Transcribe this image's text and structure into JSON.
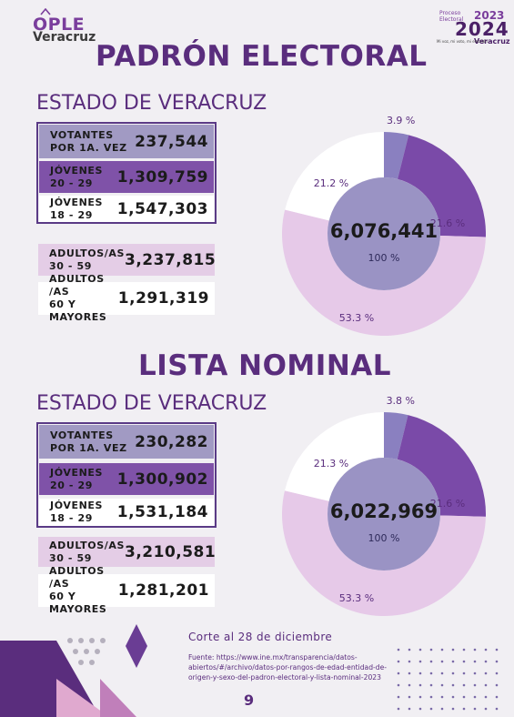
{
  "header": {
    "ople_name": "OPLE",
    "ople_sub": "Veracruz",
    "pe_small": "Proceso Electoral",
    "pe_2023": "2023",
    "pe_2024": "2024",
    "pe_veracruz": "Veracruz",
    "pe_tiny": "Mi voz, mi voto, mi elección"
  },
  "padron": {
    "title": "PADRÓN ELECTORAL",
    "subtitle": "ESTADO DE VERACRUZ",
    "rows": [
      {
        "label1": "VOTANTES",
        "label2": "POR 1A. VEZ",
        "value": "237,544"
      },
      {
        "label1": "JÓVENES",
        "label2": "20 - 29",
        "value": "1,309,759"
      },
      {
        "label1": "JÓVENES",
        "label2": "18 - 29",
        "value": "1,547,303"
      },
      {
        "label1": "ADULTOS/AS",
        "label2": "30 - 59",
        "value": "3,237,815"
      },
      {
        "label1": "ADULTOS /AS",
        "label2": "60 Y MAYORES",
        "value": "1,291,319"
      }
    ],
    "total": "6,076,441",
    "total_pct": "100 %"
  },
  "lista": {
    "title": "LISTA NOMINAL",
    "subtitle": "ESTADO DE VERACRUZ",
    "rows": [
      {
        "label1": "VOTANTES",
        "label2": "POR 1A. VEZ",
        "value": "230,282"
      },
      {
        "label1": "JÓVENES",
        "label2": "20 - 29",
        "value": "1,300,902"
      },
      {
        "label1": "JÓVENES",
        "label2": "18 - 29",
        "value": "1,531,184"
      },
      {
        "label1": "ADULTOS/AS",
        "label2": "30 - 59",
        "value": "3,210,581"
      },
      {
        "label1": "ADULTOS /AS",
        "label2": "60 Y MAYORES",
        "value": "1,281,201"
      }
    ],
    "total": "6,022,969",
    "total_pct": "100 %"
  },
  "chart_data": [
    {
      "type": "pie",
      "categories": [
        "3.9 %",
        "21.6 %",
        "53.3 %",
        "21.2 %"
      ],
      "values": [
        3.9,
        21.6,
        53.3,
        21.2
      ],
      "colors": [
        "#8a80c0",
        "#7a4aa8",
        "#e6c9e8",
        "#ffffff"
      ]
    },
    {
      "type": "pie",
      "categories": [
        "3.8 %",
        "21.6 %",
        "53.3 %",
        "21.3 %"
      ],
      "values": [
        3.8,
        21.6,
        53.3,
        21.3
      ],
      "colors": [
        "#8a80c0",
        "#7a4aa8",
        "#e6c9e8",
        "#ffffff"
      ]
    }
  ],
  "footer": {
    "corte": "Corte al 28 de diciembre",
    "fuente": "Fuente: https://www.ine.mx/transparencia/datos-abiertos/#/archivo/datos-por-rangos-de-edad-entidad-de-origen-y-sexo-del-padron-electoral-y-lista-nominal-2023",
    "page": "9"
  }
}
